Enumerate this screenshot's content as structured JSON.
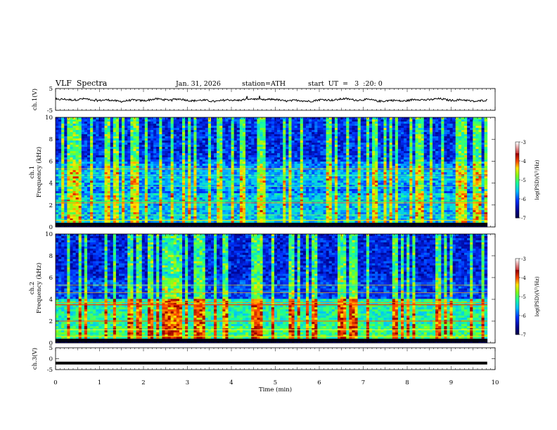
{
  "header": {
    "title": "VLF  Spectra",
    "date": "Jan. 31, 2026",
    "station": "station=ATH",
    "start": "start  UT  =   3  :20: 0"
  },
  "chart_data": [
    {
      "type": "line",
      "id": "ch1-waveform",
      "ylabel": "ch.1(V)",
      "ylim": [
        -5,
        5
      ],
      "yticks": [
        "5",
        "-5"
      ],
      "xlim": [
        0,
        10
      ],
      "description_values": "noisy waveform near 0 V spanning 0 to ~9.8 min"
    },
    {
      "type": "heatmap",
      "id": "ch1-spectrogram",
      "ylabel": "ch.1\nFrequency (kHz)",
      "ylim": [
        0,
        10
      ],
      "yticks": [
        "0",
        "2",
        "4",
        "6",
        "8",
        "10"
      ],
      "xlim": [
        0,
        10
      ],
      "colorbar": {
        "label": "log(PSD)(V²/Hz)",
        "range": [
          -7,
          -3
        ],
        "ticks": [
          "-3",
          "-4",
          "-5",
          "-6",
          "-7"
        ]
      }
    },
    {
      "type": "heatmap",
      "id": "ch2-spectrogram",
      "ylabel": "ch.2\nFrequency (kHz)",
      "ylim": [
        0,
        10
      ],
      "yticks": [
        "0",
        "2",
        "4",
        "6",
        "8",
        "10"
      ],
      "xlim": [
        0,
        10
      ],
      "colorbar": {
        "label": "log(PSD)(V²/Hz)",
        "range": [
          -7,
          -3
        ],
        "ticks": [
          "-3",
          "-4",
          "-5",
          "-6",
          "-7"
        ]
      }
    },
    {
      "type": "line",
      "id": "ch3-waveform",
      "ylabel": "ch.3(V)",
      "ylim": [
        -5,
        5
      ],
      "yticks": [
        "5",
        "0",
        "-5"
      ],
      "xlim": [
        0,
        10
      ],
      "description_values": "flat thick trace at about -2 V"
    }
  ],
  "xaxis": {
    "label": "Time  (min)",
    "ticks": [
      "0",
      "1",
      "2",
      "3",
      "4",
      "5",
      "6",
      "7",
      "8",
      "9",
      "10"
    ]
  }
}
